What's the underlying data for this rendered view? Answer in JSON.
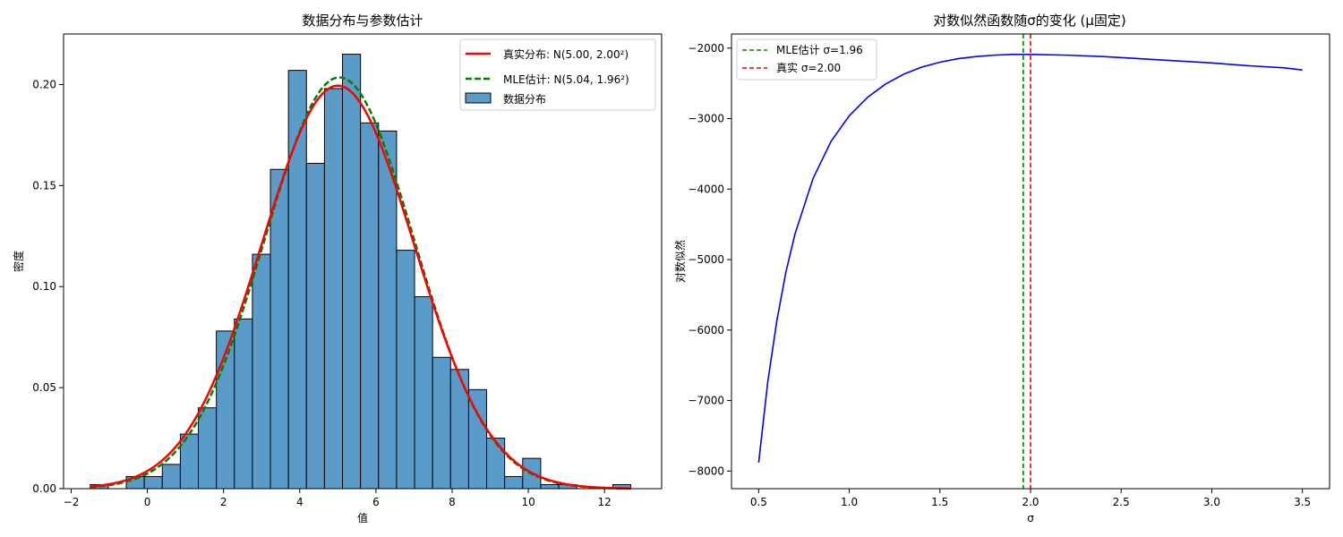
{
  "chart_data": [
    {
      "type": "bar",
      "title": "数据分布与参数估计",
      "xlabel": "值",
      "ylabel": "密度",
      "xlim": [
        -2.2,
        13.5
      ],
      "ylim": [
        0,
        0.225
      ],
      "xticks": [
        -2,
        0,
        2,
        4,
        6,
        8,
        10,
        12
      ],
      "xtick_labels": [
        "−2",
        "0",
        "2",
        "4",
        "6",
        "8",
        "10",
        "12"
      ],
      "yticks": [
        0,
        0.05,
        0.1,
        0.15,
        0.2
      ],
      "ytick_labels": [
        "0.00",
        "0.05",
        "0.10",
        "0.15",
        "0.20"
      ],
      "grid": false,
      "legend_position": "top-right",
      "histogram": {
        "name": "数据分布",
        "color": "#5b9bc9",
        "edge_color": "#000000",
        "bin_start": -1.5,
        "bin_width": 0.473,
        "values": [
          0.002,
          0,
          0.006,
          0.006,
          0.012,
          0.027,
          0.04,
          0.078,
          0.084,
          0.116,
          0.158,
          0.207,
          0.161,
          0.198,
          0.215,
          0.181,
          0.177,
          0.118,
          0.095,
          0.065,
          0.059,
          0.049,
          0.025,
          0.006,
          0.015,
          0.002,
          0.002,
          0,
          0,
          0.002
        ]
      },
      "series": [
        {
          "name": "真实分布",
          "legend_label": "真实分布: N(5.00, 2.00²)",
          "kind": "normal_pdf",
          "mu": 5.0,
          "sigma": 2.0,
          "x_range": [
            -1.5,
            12.7
          ],
          "color": "#ff0000",
          "dash": "solid"
        },
        {
          "name": "MLE估计",
          "legend_label": "MLE估计: N(5.04, 1.96²)",
          "kind": "normal_pdf",
          "mu": 5.04,
          "sigma": 1.96,
          "x_range": [
            -1.5,
            12.7
          ],
          "color": "#008000",
          "dash": "dashed"
        }
      ],
      "legend": [
        "真实分布: N(5.00, 2.00²)",
        "MLE估计: N(5.04, 1.96²)",
        "数据分布"
      ]
    },
    {
      "type": "line",
      "title": "对数似然函数随σ的变化 (μ固定)",
      "xlabel": "σ",
      "ylabel": "对数似然",
      "xlim": [
        0.35,
        3.65
      ],
      "ylim": [
        -8250,
        -1800
      ],
      "xticks": [
        0.5,
        1.0,
        1.5,
        2.0,
        2.5,
        3.0,
        3.5
      ],
      "xtick_labels": [
        "0.5",
        "1.0",
        "1.5",
        "2.0",
        "2.5",
        "3.0",
        "3.5"
      ],
      "yticks": [
        -8000,
        -7000,
        -6000,
        -5000,
        -4000,
        -3000,
        -2000
      ],
      "ytick_labels": [
        "−8000",
        "−7000",
        "−6000",
        "−5000",
        "−4000",
        "−3000",
        "−2000"
      ],
      "grid": false,
      "legend_position": "top-left",
      "series": [
        {
          "name": "",
          "color": "#0000ff",
          "x": [
            0.5,
            0.55,
            0.6,
            0.65,
            0.7,
            0.8,
            0.9,
            1.0,
            1.1,
            1.2,
            1.3,
            1.4,
            1.5,
            1.6,
            1.7,
            1.8,
            1.9,
            1.96,
            2.0,
            2.2,
            2.4,
            2.6,
            2.8,
            3.0,
            3.2,
            3.4,
            3.5
          ],
          "y": [
            -7880,
            -6740,
            -5870,
            -5180,
            -4640,
            -3850,
            -3320,
            -2960,
            -2700,
            -2510,
            -2370,
            -2270,
            -2200,
            -2150,
            -2120,
            -2100,
            -2090,
            -2090,
            -2090,
            -2100,
            -2120,
            -2150,
            -2180,
            -2210,
            -2250,
            -2280,
            -2310
          ]
        }
      ],
      "vlines": [
        {
          "name": "MLE估计",
          "legend_label": "MLE估计 σ=1.96",
          "x": 1.96,
          "color": "#008000",
          "dash": "dashed"
        },
        {
          "name": "真实",
          "legend_label": "真实 σ=2.00",
          "x": 2.0,
          "color": "#ff0000",
          "dash": "dashed"
        }
      ],
      "legend": [
        "MLE估计 σ=1.96",
        "真实 σ=2.00"
      ]
    }
  ]
}
